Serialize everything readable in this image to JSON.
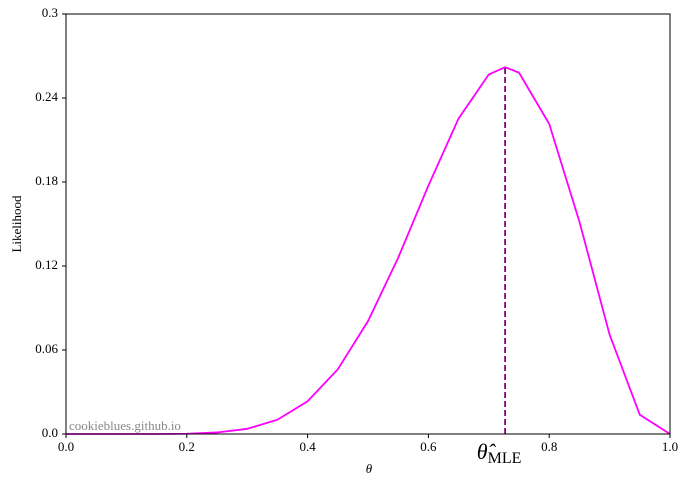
{
  "chart_data": {
    "type": "line",
    "xlabel": "θ",
    "ylabel": "Likelihood",
    "watermark": "cookieblues.github.io",
    "x": [
      0,
      0.05,
      0.1,
      0.15,
      0.2,
      0.25,
      0.3,
      0.35,
      0.4,
      0.45,
      0.5,
      0.55,
      0.6,
      0.65,
      0.7,
      0.727,
      0.75,
      0.8,
      0.85,
      0.9,
      0.95,
      1.0
    ],
    "series": [
      {
        "color": "#ff00ff",
        "values": [
          0,
          0,
          0,
          0,
          0.0002,
          0.0011,
          0.0037,
          0.0102,
          0.0234,
          0.0462,
          0.0806,
          0.1259,
          0.1774,
          0.2254,
          0.2568,
          0.262,
          0.2581,
          0.2215,
          0.1517,
          0.071,
          0.0137,
          0
        ]
      }
    ],
    "mle": {
      "x": 0.727,
      "y": 0.262,
      "color": "#800080",
      "label": "θ̂",
      "label_sub": "MLE"
    },
    "xlim": [
      0,
      1
    ],
    "ylim": [
      0,
      0.3
    ],
    "xticks": [
      {
        "value": 0,
        "label": "0.0"
      },
      0.2,
      0.4,
      0.6,
      0.8,
      {
        "value": 1,
        "label": "1.0"
      }
    ],
    "yticks": [
      {
        "value": 0,
        "label": "0.0"
      },
      0.06,
      0.12,
      0.18,
      0.24,
      0.3
    ]
  }
}
